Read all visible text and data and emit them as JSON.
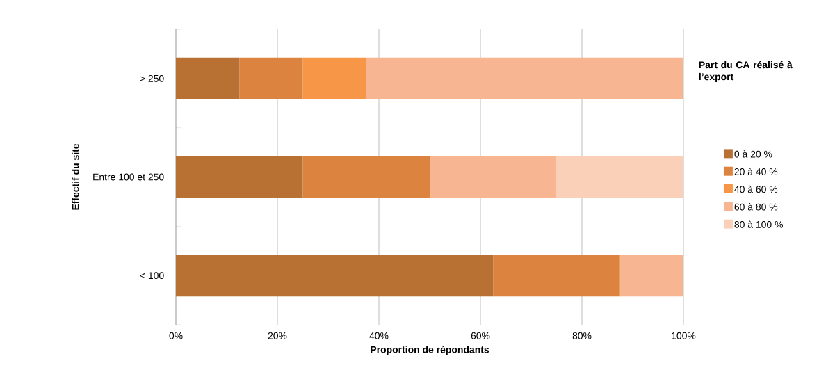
{
  "chart_data": {
    "type": "bar",
    "orientation": "horizontal",
    "stacked": true,
    "categories": [
      "> 250",
      "Entre 100 et 250",
      "< 100"
    ],
    "series": [
      {
        "name": "0 à 20 %",
        "color": "#b87033",
        "values": [
          12.5,
          25,
          62.5
        ]
      },
      {
        "name": "20 à 40 %",
        "color": "#dc843f",
        "values": [
          12.5,
          25,
          25
        ]
      },
      {
        "name": "40 à 60 %",
        "color": "#f79646",
        "values": [
          12.5,
          0,
          0
        ]
      },
      {
        "name": "60 à 80 %",
        "color": "#f8b592",
        "values": [
          62.5,
          25,
          12.5
        ]
      },
      {
        "name": "80 à 100 %",
        "color": "#fbd0b9",
        "values": [
          0,
          25,
          0
        ]
      }
    ],
    "xlim": [
      0,
      100
    ],
    "xticks": [
      {
        "value": 0,
        "label": "0%"
      },
      {
        "value": 20,
        "label": "20%"
      },
      {
        "value": 40,
        "label": "40%"
      },
      {
        "value": 60,
        "label": "60%"
      },
      {
        "value": 80,
        "label": "80%"
      },
      {
        "value": 100,
        "label": "100%"
      }
    ],
    "xlabel": "Proportion de répondants",
    "ylabel": "Effectif du site",
    "legend_title": "Part du CA réalisé à l’export",
    "legend": "right",
    "grid": "x"
  }
}
